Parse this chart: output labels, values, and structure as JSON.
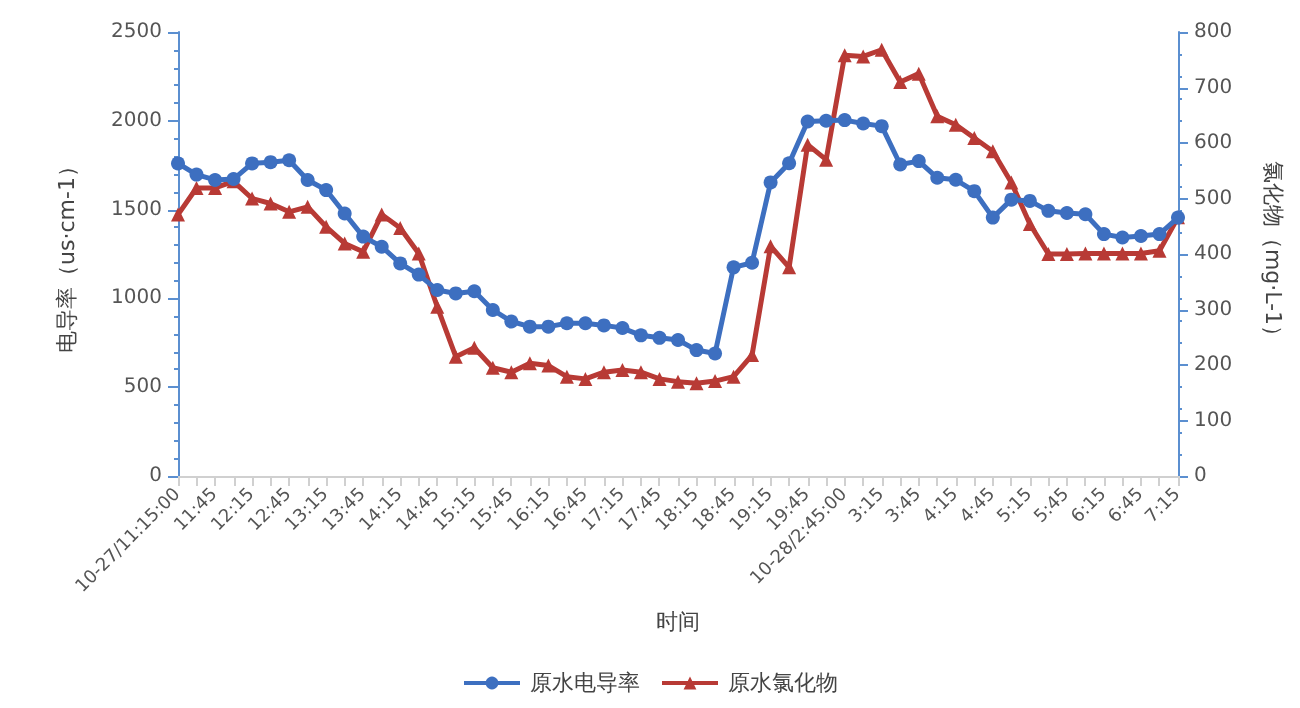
{
  "chart_data": {
    "type": "line",
    "xlabel": "时间",
    "ylabel": "电导率（us·cm-1）",
    "y2label": "氯化物（mg·L-1）",
    "categories": [
      "10-27/11:15:00",
      null,
      "11:45",
      null,
      "12:15",
      null,
      "12:45",
      null,
      "13:15",
      null,
      "13:45",
      null,
      "14:15",
      null,
      "14:45",
      null,
      "15:15",
      null,
      "15:45",
      null,
      "16:15",
      null,
      "16:45",
      null,
      "17:15",
      null,
      "17:45",
      null,
      "18:15",
      null,
      "18:45",
      null,
      "19:15",
      null,
      "19:45",
      null,
      "10-28/2:45:00",
      null,
      "3:15",
      null,
      "3:45",
      null,
      "4:15",
      null,
      "4:45",
      null,
      "5:15",
      null,
      "5:45",
      null,
      "6:15",
      null,
      "6:45",
      null,
      "7:15"
    ],
    "series": [
      {
        "name": "原水电导率",
        "color": "#3d6fc0",
        "marker": "circle",
        "values": [
          1760,
          1697,
          1667,
          1672,
          1760,
          1767,
          1778,
          1667,
          1610,
          1478,
          1348,
          1291,
          1197,
          1134,
          1047,
          1028,
          1040,
          935,
          870,
          841,
          841,
          860,
          860,
          848,
          833,
          792,
          778,
          766,
          709,
          690,
          1175,
          1201,
          1653,
          1761,
          1996,
          2000,
          2004,
          1985,
          1970,
          1754,
          1773,
          1679,
          1668,
          1604,
          1455,
          1556,
          1549,
          1493,
          1481,
          1474,
          1362,
          1343,
          1351,
          1362,
          1455
        ]
      },
      {
        "name": "原水氯化物",
        "color": "#b83a35",
        "marker": "triangle",
        "axis": "y2",
        "values": [
          471,
          519,
          519,
          531,
          500,
          491,
          476,
          485,
          449,
          419,
          404,
          471,
          447,
          401,
          305,
          215,
          231,
          195,
          187,
          203,
          199,
          179,
          175,
          187,
          191,
          187,
          175,
          170,
          167,
          171,
          179,
          218,
          414,
          376,
          597,
          570,
          758,
          756,
          768,
          710,
          725,
          648,
          633,
          609,
          585,
          529,
          454,
          400,
          400,
          401,
          401,
          401,
          401,
          406,
          466
        ]
      }
    ],
    "ylim": [
      0,
      2500
    ],
    "yticks": [
      0,
      500,
      1000,
      1500,
      2000,
      2500
    ],
    "y2lim": [
      0,
      800
    ],
    "y2ticks": [
      0,
      100,
      200,
      300,
      400,
      500,
      600,
      700,
      800
    ],
    "grid": false,
    "legend": "bottom",
    "line_style": "solid"
  }
}
